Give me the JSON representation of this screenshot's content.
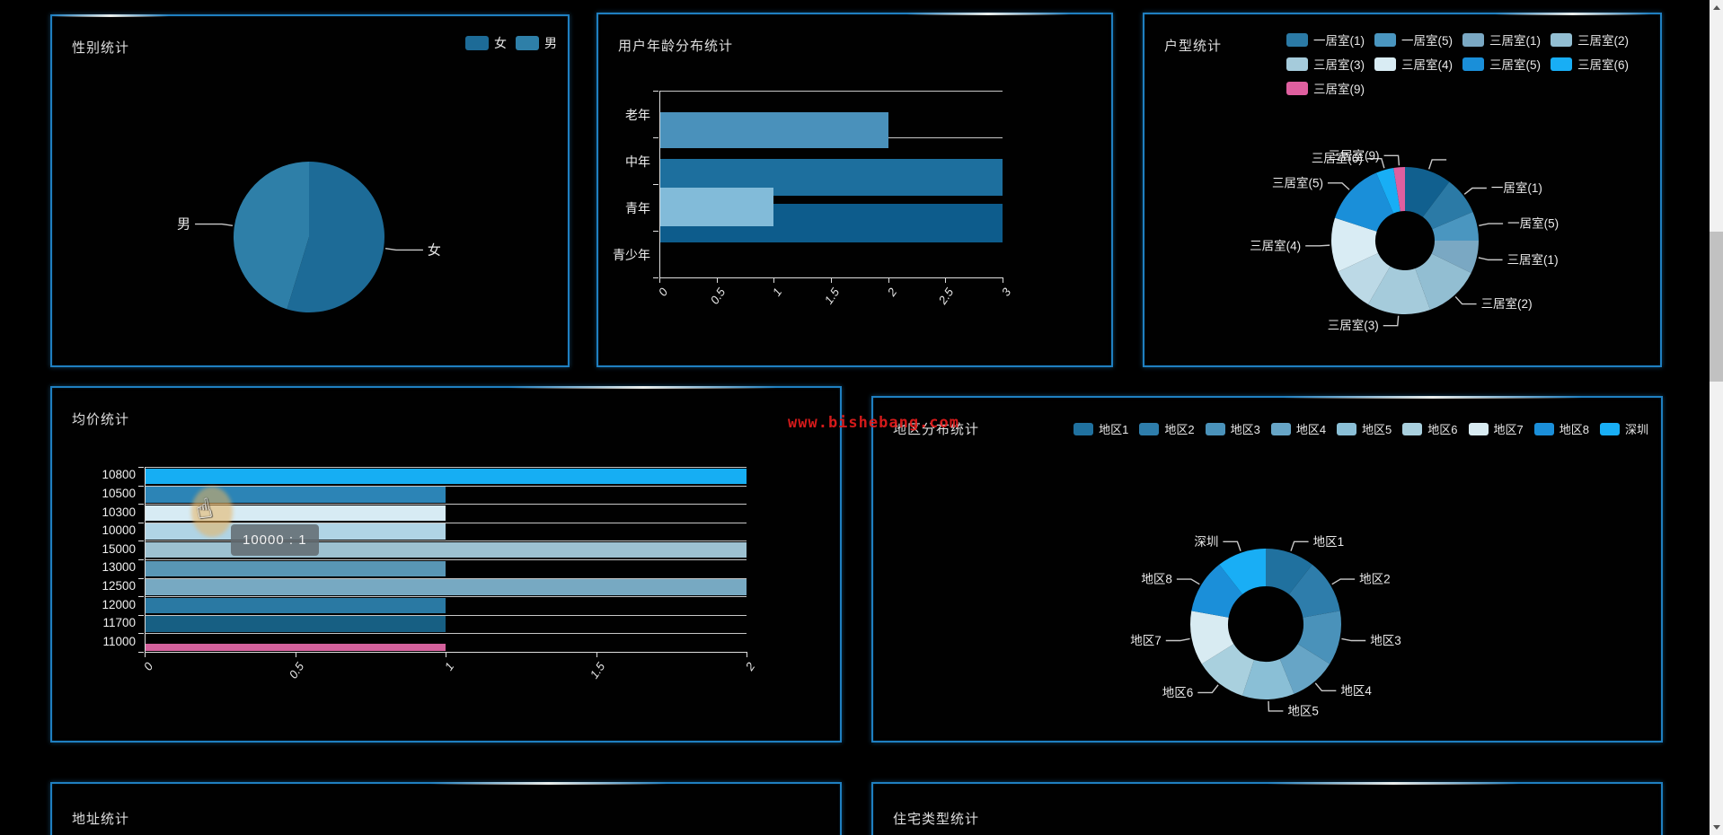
{
  "page": {
    "watermark": "www.bishebang.com"
  },
  "panels": {
    "gender": {
      "title": "性别统计"
    },
    "age": {
      "title": "用户年龄分布统计"
    },
    "housetype": {
      "title": "户型统计"
    },
    "avgprice": {
      "title": "均价统计"
    },
    "region": {
      "title": "地区分布统计"
    },
    "address": {
      "title": "地址统计"
    },
    "restype": {
      "title": "住宅类型统计"
    }
  },
  "chart_data": [
    {
      "id": "gender",
      "type": "pie",
      "title": "性别统计",
      "legend_position": "top-right",
      "legend": [
        {
          "label": "女",
          "color": "#1d6b97"
        },
        {
          "label": "男",
          "color": "#2e7fa8"
        }
      ],
      "segments": [
        {
          "label": "女",
          "deg": 197,
          "color": "#1d6b97"
        },
        {
          "label": "男",
          "deg": 163,
          "color": "#2e7fa8"
        }
      ]
    },
    {
      "id": "age",
      "type": "bar",
      "orientation": "horizontal",
      "title": "用户年龄分布统计",
      "categories": [
        "老年",
        "中年",
        "青年",
        "青少年"
      ],
      "values": [
        2,
        3,
        1,
        3
      ],
      "colors": [
        "#4a91bb",
        "#1d6f9e",
        "#82bbd9",
        "#0d5c8c"
      ],
      "xlim": [
        0,
        3
      ],
      "xticks": [
        "0",
        "0.5",
        "1",
        "1.5",
        "2",
        "2.5",
        "3"
      ],
      "grid": true,
      "legend_position": "none"
    },
    {
      "id": "housetype",
      "type": "donut",
      "title": "户型统计",
      "legend_position": "top-right",
      "legend": [
        {
          "label": "一居室(1)",
          "color": "#2b7aa6"
        },
        {
          "label": "一居室(5)",
          "color": "#4a96c0"
        },
        {
          "label": "三居室(1)",
          "color": "#7aa8c3"
        },
        {
          "label": "三居室(2)",
          "color": "#92bed2"
        },
        {
          "label": "三居室(3)",
          "color": "#a5cbdb"
        },
        {
          "label": "三居室(4)",
          "color": "#d9ecf4"
        },
        {
          "label": "三居室(5)",
          "color": "#1a8fd9"
        },
        {
          "label": "三居室(6)",
          "color": "#18aef5"
        },
        {
          "label": "三居室(9)",
          "color": "#df5f9f"
        }
      ],
      "segments": [
        {
          "label": "",
          "deg": 37,
          "color": "#11608f"
        },
        {
          "label": "一居室(1)",
          "deg": 30,
          "color": "#2b7aa6"
        },
        {
          "label": "一居室(5)",
          "deg": 23,
          "color": "#4a96c0"
        },
        {
          "label": "三居室(1)",
          "deg": 26,
          "color": "#7aa8c3"
        },
        {
          "label": "三居室(2)",
          "deg": 44,
          "color": "#92bed2"
        },
        {
          "label": "三居室(3)",
          "deg": 50,
          "color": "#a5cbdb"
        },
        {
          "label": null,
          "deg": 35,
          "color": "#bcd9e6"
        },
        {
          "label": "三居室(4)",
          "deg": 43,
          "color": "#d9ecf4"
        },
        {
          "label": "三居室(5)",
          "deg": 49,
          "color": "#1a8fd9"
        },
        {
          "label": "三居室(6)",
          "deg": 14,
          "color": "#18aef5"
        },
        {
          "label": "三居室(9)",
          "deg": 9,
          "color": "#df5f9f"
        }
      ]
    },
    {
      "id": "avgprice",
      "type": "bar",
      "orientation": "horizontal",
      "title": "均价统计",
      "categories": [
        "10800",
        "10500",
        "10300",
        "10000",
        "15000",
        "13000",
        "12500",
        "12000",
        "11700",
        "11000"
      ],
      "values": [
        2,
        1,
        1,
        1,
        2,
        1,
        2,
        1,
        1,
        1
      ],
      "colors": [
        "#16aef3",
        "#2c84b6",
        "#d7ebf4",
        "#b0d4e5",
        "#9dc1d1",
        "#5996b5",
        "#77a9c2",
        "#2a79a3",
        "#175f83",
        "#d4619c"
      ],
      "xlim": [
        0,
        2
      ],
      "xticks": [
        "0",
        "0.5",
        "1",
        "1.5",
        "2"
      ],
      "grid": true,
      "legend_position": "none",
      "tooltip": "10000 : 1"
    },
    {
      "id": "region",
      "type": "donut",
      "title": "地区分布统计",
      "legend_position": "top-right",
      "legend": [
        {
          "label": "地区1",
          "color": "#20719f"
        },
        {
          "label": "地区2",
          "color": "#2e7dab"
        },
        {
          "label": "地区3",
          "color": "#4a92ba"
        },
        {
          "label": "地区4",
          "color": "#67a5c6"
        },
        {
          "label": "地区5",
          "color": "#8abfd6"
        },
        {
          "label": "地区6",
          "color": "#a9d0de"
        },
        {
          "label": "地区7",
          "color": "#d8ebf2"
        },
        {
          "label": "地区8",
          "color": "#1b8fd9"
        },
        {
          "label": "深圳",
          "color": "#19aef5"
        }
      ],
      "segments": [
        {
          "label": "地区1",
          "deg": 38,
          "color": "#20719f"
        },
        {
          "label": "地区2",
          "deg": 42,
          "color": "#2e7dab"
        },
        {
          "label": "地区3",
          "deg": 42,
          "color": "#4a92ba"
        },
        {
          "label": "地区4",
          "deg": 36,
          "color": "#67a5c6"
        },
        {
          "label": "地区5",
          "deg": 40,
          "color": "#8abfd6"
        },
        {
          "label": "地区6",
          "deg": 40,
          "color": "#a9d0de"
        },
        {
          "label": "地区7",
          "deg": 42,
          "color": "#d8ebf2"
        },
        {
          "label": "地区8",
          "deg": 42,
          "color": "#1b8fd9"
        },
        {
          "label": "深圳",
          "deg": 38,
          "color": "#19aef5"
        }
      ]
    }
  ]
}
